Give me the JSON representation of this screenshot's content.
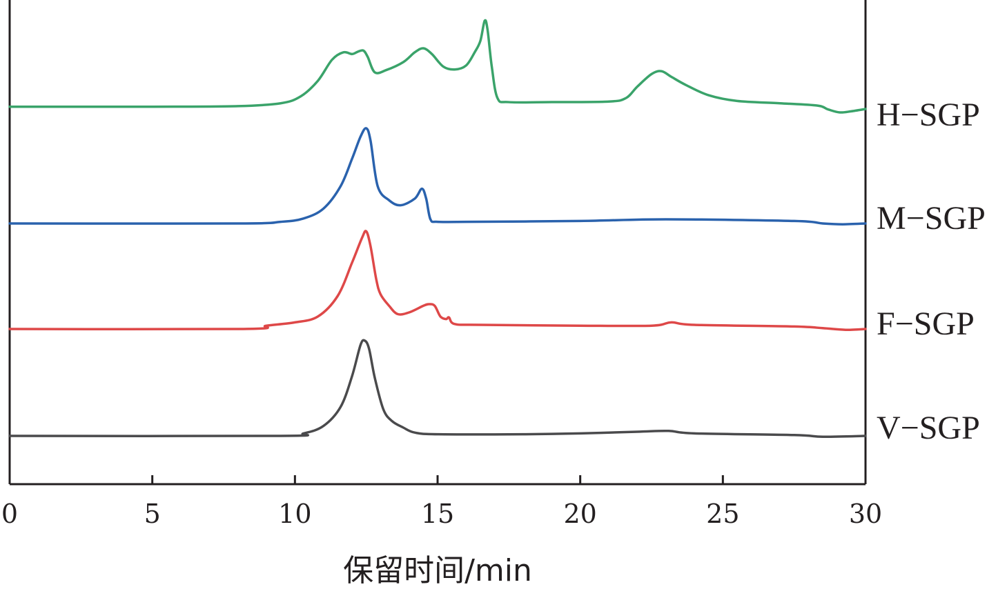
{
  "chart_data": {
    "type": "line",
    "title": "",
    "xlabel": "保留时间/min",
    "ylabel": "",
    "xlim": [
      0,
      30
    ],
    "xticks": [
      "0",
      "5",
      "10",
      "15",
      "20",
      "25",
      "30"
    ],
    "grid": false,
    "legend": "labels at right end of each trace",
    "series": [
      {
        "name": "H-SGP",
        "color": "#3aa36a",
        "x": [
          0,
          5,
          8,
          9.5,
          10.2,
          10.8,
          11.3,
          11.7,
          12.0,
          12.2,
          12.4,
          12.55,
          12.8,
          13.2,
          13.8,
          14.2,
          14.5,
          14.8,
          15.2,
          15.6,
          16.0,
          16.3,
          16.5,
          16.65,
          16.75,
          16.9,
          17.1,
          17.5,
          19.0,
          21.0,
          21.6,
          22.0,
          22.5,
          22.85,
          23.2,
          23.7,
          24.5,
          25.5,
          27.0,
          28.3,
          28.7,
          29.1,
          29.5,
          30.0
        ],
        "values": [
          0.1,
          0.1,
          0.11,
          0.16,
          0.28,
          0.55,
          0.92,
          1.05,
          1.02,
          1.06,
          1.08,
          0.97,
          0.7,
          0.74,
          0.88,
          1.05,
          1.12,
          1.02,
          0.8,
          0.75,
          0.82,
          1.05,
          1.25,
          1.6,
          1.45,
          0.8,
          0.25,
          0.18,
          0.18,
          0.19,
          0.25,
          0.45,
          0.67,
          0.72,
          0.62,
          0.48,
          0.3,
          0.2,
          0.16,
          0.12,
          0.05,
          0.0,
          0.02,
          0.06
        ]
      },
      {
        "name": "M-SGP",
        "color": "#2a62ad",
        "x": [
          0,
          8,
          9.5,
          10.3,
          11.0,
          11.6,
          12.0,
          12.3,
          12.5,
          12.65,
          12.9,
          13.3,
          13.7,
          14.2,
          14.45,
          14.6,
          14.75,
          15.0,
          16.0,
          20.0,
          23.0,
          27.5,
          28.5,
          29.2,
          30.0
        ],
        "values": [
          0.0,
          0.0,
          0.02,
          0.06,
          0.18,
          0.45,
          0.78,
          1.05,
          1.15,
          1.0,
          0.45,
          0.28,
          0.22,
          0.3,
          0.42,
          0.3,
          0.05,
          0.02,
          0.02,
          0.03,
          0.05,
          0.03,
          0.0,
          -0.01,
          0.0
        ]
      },
      {
        "name": "F-SGP",
        "color": "#de4848",
        "x": [
          0,
          8.2,
          9.0,
          10.0,
          10.8,
          11.5,
          12.0,
          12.35,
          12.5,
          12.65,
          12.85,
          13.0,
          13.3,
          13.6,
          14.0,
          14.5,
          14.7,
          14.9,
          15.1,
          15.3,
          15.4,
          15.6,
          16.5,
          20.0,
          22.5,
          23.2,
          24.0,
          27.5,
          28.5,
          29.3,
          30.0
        ],
        "values": [
          0.0,
          0.0,
          0.04,
          0.08,
          0.15,
          0.4,
          0.8,
          1.1,
          1.18,
          1.0,
          0.6,
          0.42,
          0.28,
          0.18,
          0.2,
          0.28,
          0.3,
          0.28,
          0.15,
          0.12,
          0.14,
          0.06,
          0.05,
          0.04,
          0.04,
          0.08,
          0.05,
          0.03,
          0.01,
          -0.01,
          0.0
        ]
      },
      {
        "name": "V-SGP",
        "color": "#4a4a4c",
        "x": [
          0,
          9.5,
          10.3,
          11.0,
          11.6,
          12.0,
          12.3,
          12.45,
          12.6,
          12.8,
          13.1,
          13.4,
          13.8,
          14.2,
          15.0,
          18.0,
          20.0,
          22.0,
          23.1,
          24.0,
          27.5,
          28.5,
          30.0
        ],
        "values": [
          0.0,
          0.0,
          0.03,
          0.12,
          0.35,
          0.72,
          1.1,
          1.15,
          1.05,
          0.7,
          0.32,
          0.18,
          0.1,
          0.04,
          0.02,
          0.02,
          0.03,
          0.05,
          0.06,
          0.03,
          0.01,
          -0.01,
          0.0
        ]
      }
    ]
  }
}
